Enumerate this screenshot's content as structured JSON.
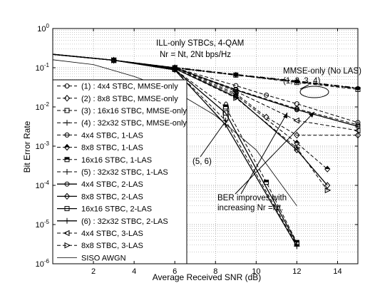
{
  "chart_data": {
    "type": "line",
    "xlabel": "Average Received SNR (dB)",
    "ylabel": "Bit Error Rate",
    "xlim": [
      0,
      15
    ],
    "ylim": [
      1e-06,
      1
    ],
    "log_y": true,
    "grid": true,
    "x_ticks": [
      2,
      4,
      6,
      8,
      10,
      12,
      14
    ],
    "x_tick_labels": [
      "2",
      "4",
      "6",
      "8",
      "10",
      "12",
      "14"
    ],
    "y_ticks": [
      1,
      0.1,
      0.01,
      0.001,
      0.0001,
      1e-05,
      1e-06
    ],
    "y_tick_labels": [
      {
        "base": "10",
        "exp": "0"
      },
      {
        "base": "10",
        "exp": "-1"
      },
      {
        "base": "10",
        "exp": "-2"
      },
      {
        "base": "10",
        "exp": "-3"
      },
      {
        "base": "10",
        "exp": "-4"
      },
      {
        "base": "10",
        "exp": "-5"
      },
      {
        "base": "10",
        "exp": "-6"
      }
    ],
    "annotations": {
      "title_line1": "ILL-only STBCs, 4-QAM",
      "title_line2": "Nr = Nt, 2Nt bps/Hz",
      "mmse_line1": "MMSE-only (No LAS)",
      "mmse_line2": "(1, 2, 3, 4)",
      "group56": "(5, 6)",
      "ber_line1": "BER improves with",
      "ber_line2": "increasing Nr =Nt."
    },
    "legend_placement": "left",
    "series": [
      {
        "name": "(1) :  4x4 STBC, MMSE-only",
        "dash": "5,3",
        "marker": "circle",
        "width": 1,
        "x": [
          0,
          3,
          6,
          9,
          10.5,
          12,
          15
        ],
        "y": [
          0.22,
          0.155,
          0.1,
          0.035,
          0.02,
          0.012,
          0.004
        ]
      },
      {
        "name": "(2) :  8x8 STBC, MMSE-only",
        "dash": "5,3",
        "marker": "diamond",
        "width": 1,
        "x": [
          0,
          3,
          6,
          9,
          10.5,
          12,
          15
        ],
        "y": [
          0.22,
          0.155,
          0.1,
          0.022,
          0.0055,
          0.0019,
          0.0019
        ]
      },
      {
        "name": "(3) : 16x16 STBC, MMSE-only",
        "dash": "5,3",
        "marker": "square",
        "width": 1,
        "x": [
          0,
          3,
          6,
          9,
          12,
          15
        ],
        "y": [
          0.22,
          0.155,
          0.1,
          0.065,
          0.042,
          0.028
        ]
      },
      {
        "name": "(4) : 32x32 STBC, MMSE-only",
        "dash": "5,3",
        "marker": "plus",
        "width": 1,
        "x": [
          0,
          3,
          6,
          9,
          12,
          15
        ],
        "y": [
          0.22,
          0.155,
          0.1,
          0.066,
          0.045,
          0.03
        ]
      },
      {
        "name": "4x4 STBC,  1-LAS",
        "dash": "5,3",
        "marker": "circle-bar",
        "width": 1,
        "x": [
          0,
          3,
          6,
          9,
          12,
          15
        ],
        "y": [
          0.22,
          0.155,
          0.1,
          0.028,
          0.009,
          0.0035
        ]
      },
      {
        "name": "8x8 STBC,  1-LAS",
        "dash": "5,3",
        "marker": "diamond-bar",
        "width": 1,
        "x": [
          0,
          3,
          6,
          9,
          12,
          13.5
        ],
        "y": [
          0.22,
          0.155,
          0.095,
          0.02,
          0.0012,
          0.00026
        ]
      },
      {
        "name": "16x16 STBC,  1-LAS",
        "dash": "5,3",
        "marker": "square-bar",
        "width": 1,
        "x": [
          0,
          3,
          6,
          8.5,
          10.5,
          12
        ],
        "y": [
          0.22,
          0.155,
          0.09,
          0.01,
          0.00012,
          3.5e-06
        ]
      },
      {
        "name": "(5) :  32x32 STBC, 1-LAS",
        "dash": "5,3",
        "marker": "plus",
        "width": 1,
        "x": [
          0,
          3,
          6,
          8.5,
          12
        ],
        "y": [
          0.22,
          0.155,
          0.088,
          0.0045,
          3e-06
        ]
      },
      {
        "name": "4x4 STBC,  2-LAS",
        "dash": "",
        "marker": "circle",
        "width": 1.3,
        "x": [
          0,
          3,
          6,
          9,
          12,
          15
        ],
        "y": [
          0.22,
          0.155,
          0.1,
          0.027,
          0.0085,
          0.0032
        ]
      },
      {
        "name": "8x8 STBC,  2-LAS",
        "dash": "",
        "marker": "diamond",
        "width": 1.3,
        "x": [
          0,
          3,
          6,
          9,
          12,
          13.5
        ],
        "y": [
          0.22,
          0.155,
          0.095,
          0.018,
          0.0008,
          0.0001
        ]
      },
      {
        "name": "16x16 STBC,  2-LAS",
        "dash": "",
        "marker": "square",
        "width": 1.3,
        "x": [
          0,
          3,
          6,
          8.5,
          12
        ],
        "y": [
          0.22,
          0.155,
          0.09,
          0.007,
          3.3e-06
        ]
      },
      {
        "name": "(6) :  32x32 STBC, 2-LAS",
        "dash": "",
        "marker": "plus",
        "width": 1.3,
        "x": [
          0,
          3,
          6,
          8.5,
          12
        ],
        "y": [
          0.22,
          0.155,
          0.088,
          0.0035,
          2.8e-06
        ]
      },
      {
        "name": "4x4 STBC,  3-LAS",
        "dash": "5,3",
        "marker": "tri-left",
        "width": 1,
        "x": [
          0,
          3,
          6,
          9,
          12,
          15
        ],
        "y": [
          0.22,
          0.155,
          0.1,
          0.025,
          0.0045,
          0.0025
        ]
      },
      {
        "name": "8x8 STBC,  3-LAS",
        "dash": "5,3",
        "marker": "tri-right",
        "width": 1,
        "x": [
          0,
          3,
          6,
          9,
          12,
          13.5
        ],
        "y": [
          0.22,
          0.155,
          0.095,
          0.017,
          0.0009,
          7.5e-05
        ]
      },
      {
        "name": "SISO AWGN",
        "dash": "",
        "marker": "none",
        "width": 0.8,
        "x": [
          0,
          2,
          4,
          6,
          8,
          10,
          12
        ],
        "y": [
          0.16,
          0.12,
          0.06,
          0.025,
          0.006,
          0.0008,
          3e-05
        ]
      }
    ]
  }
}
